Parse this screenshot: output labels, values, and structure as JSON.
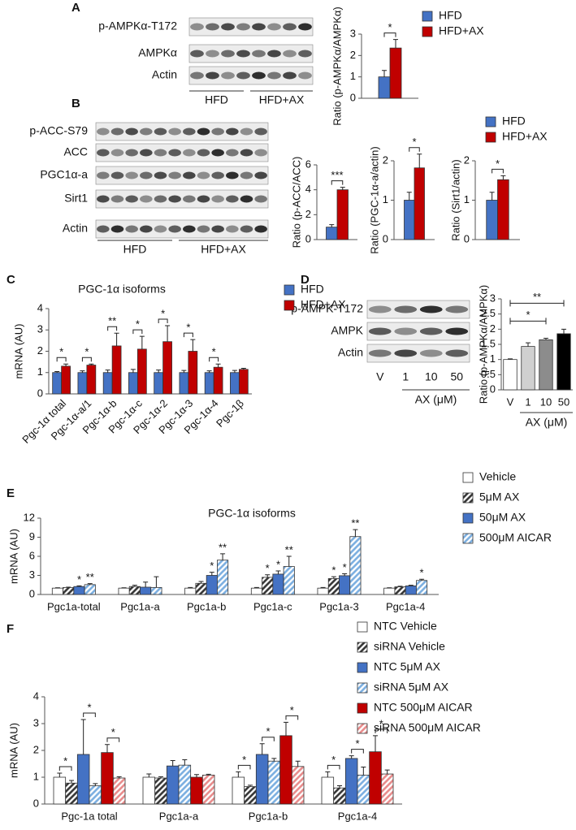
{
  "blots": [
    {
      "panel": "A",
      "rows": [
        "p-AMPKα-T172",
        "AMPKα",
        "Actin"
      ],
      "groups": [
        "HFD",
        "HFD+AX"
      ]
    },
    {
      "panel": "B",
      "rows": [
        "p-ACC-S79",
        "ACC",
        "PGC1α-a",
        "Sirt1",
        "Actin"
      ],
      "groups": [
        "HFD",
        "HFD+AX"
      ]
    },
    {
      "panel": "D",
      "rows": [
        "p-AMPK-T172",
        "AMPK",
        "Actin"
      ],
      "lanes": [
        "V",
        "1",
        "10",
        "50"
      ],
      "group": "AX (μM)"
    }
  ],
  "chart_data": [
    {
      "type": "bar",
      "categories": [
        null
      ],
      "ylabel": "Ratio (p-AMPKα/AMPKα)",
      "ylim": [
        0,
        3
      ],
      "yticks": [
        0,
        1,
        2,
        3
      ],
      "series": [
        {
          "name": "HFD",
          "color": "#4472c4",
          "values": [
            1
          ],
          "errors": [
            0.3
          ]
        },
        {
          "name": "HFD+AX",
          "color": "#c00000",
          "values": [
            2.35
          ],
          "errors": [
            0.4
          ]
        }
      ],
      "brackets": [
        "*"
      ]
    },
    {
      "type": "bar",
      "categories": [
        null
      ],
      "ylabel": "Ratio (p-ACC/ACC)",
      "ylim": [
        0,
        6
      ],
      "yticks": [
        0,
        2,
        4,
        6
      ],
      "series": [
        {
          "color": "#4472c4",
          "values": [
            1
          ],
          "errors": [
            0.2
          ]
        },
        {
          "color": "#c00000",
          "values": [
            4
          ],
          "errors": [
            0.2
          ]
        }
      ],
      "brackets": [
        "***"
      ]
    },
    {
      "type": "bar",
      "categories": [
        null
      ],
      "ylabel": "Ratio (PGC-1α-a/actin)",
      "ylim": [
        0,
        2
      ],
      "yticks": [
        0,
        1,
        2
      ],
      "series": [
        {
          "color": "#4472c4",
          "values": [
            1
          ],
          "errors": [
            0.2
          ]
        },
        {
          "color": "#c00000",
          "values": [
            1.82
          ],
          "errors": [
            0.35
          ]
        }
      ],
      "brackets": [
        "*"
      ]
    },
    {
      "type": "bar",
      "categories": [
        null
      ],
      "ylabel": "Ratio (Sirt1/actin)",
      "ylim": [
        0,
        2
      ],
      "yticks": [
        0,
        1,
        2
      ],
      "series": [
        {
          "name": "HFD",
          "color": "#4472c4",
          "values": [
            1
          ],
          "errors": [
            0.2
          ]
        },
        {
          "name": "HFD+AX",
          "color": "#c00000",
          "values": [
            1.52
          ],
          "errors": [
            0.1
          ]
        }
      ],
      "brackets": [
        "*"
      ]
    },
    {
      "type": "bar",
      "panel": "C",
      "title": "PGC-1α isoforms",
      "ylabel": "mRNA (AU)",
      "ylim": [
        0,
        4
      ],
      "yticks": [
        0,
        1,
        2,
        3,
        4
      ],
      "categories": [
        "Pgc-1α total",
        "Pgc-1α-a/1",
        "Pgc-1α-b",
        "Pgc-1α-c",
        "Pgc-1α-2",
        "Pgc-1α-3",
        "Pgc-1α-4",
        "Pgc-1β"
      ],
      "series": [
        {
          "name": "HFD",
          "color": "#4472c4",
          "values": [
            1,
            1,
            1,
            1,
            1,
            1,
            1,
            1
          ],
          "errors": [
            0.05,
            0.08,
            0.12,
            0.15,
            0.12,
            0.1,
            0.08,
            0.1
          ]
        },
        {
          "name": "HFD+AX",
          "color": "#c00000",
          "values": [
            1.3,
            1.35,
            2.25,
            2.1,
            2.45,
            2,
            1.25,
            1.15
          ],
          "errors": [
            0.1,
            0.05,
            0.6,
            0.6,
            0.75,
            0.55,
            0.15,
            0.05
          ]
        }
      ],
      "brackets": [
        "*",
        "*",
        "**",
        "*",
        "*",
        "*",
        "*",
        null
      ]
    },
    {
      "type": "bar",
      "ylabel": "Ratio (p-AMPKα/AMPKα)",
      "ylim": [
        0,
        3
      ],
      "yticks": [
        0,
        0.5,
        1,
        1.5,
        2,
        2.5,
        3
      ],
      "categories": [
        "V",
        "1",
        "10",
        "50"
      ],
      "xlabel": "AX (μM)",
      "values": [
        1,
        1.43,
        1.65,
        1.85
      ],
      "errors": [
        0.02,
        0.12,
        0.05,
        0.15
      ],
      "colors": [
        "#ffffff",
        "#d0d0d0",
        "#8c8c8c",
        "#000000"
      ],
      "annotations": [
        "*",
        "**"
      ]
    },
    {
      "type": "bar",
      "panel": "E",
      "title": "PGC-1α isoforms",
      "ylabel": "mRNA (AU)",
      "ylim": [
        0,
        12
      ],
      "yticks": [
        0,
        3,
        6,
        9,
        12
      ],
      "categories": [
        "Pgc1a-total",
        "Pgc1a-a",
        "Pgc1a-b",
        "Pgc1a-c",
        "Pgc1a-3",
        "Pgc1a-4"
      ],
      "series": [
        {
          "name": "Vehicle",
          "color": "#ffffff",
          "values": [
            1,
            1,
            1,
            1,
            1,
            1
          ],
          "errors": [
            0.05,
            0.05,
            0.1,
            0.1,
            0.1,
            0.05
          ]
        },
        {
          "name": "5μM AX",
          "color": "#333333",
          "hatch": true,
          "values": [
            1.1,
            1.25,
            1.75,
            2.7,
            2.5,
            1.2
          ],
          "errors": [
            0.05,
            0.2,
            0.3,
            0.4,
            0.3,
            0.1
          ],
          "significance": [
            null,
            null,
            null,
            "*",
            "*",
            null
          ]
        },
        {
          "name": "50μM AX",
          "color": "#4472c4",
          "values": [
            1.25,
            1.15,
            3,
            3.2,
            2.95,
            1.35
          ],
          "errors": [
            0.1,
            0.8,
            0.5,
            0.5,
            0.3,
            0.1
          ],
          "significance": [
            "*",
            null,
            "*",
            "*",
            "*",
            null
          ]
        },
        {
          "name": "500μM AICAR",
          "color": "#7aaee0",
          "hatch": true,
          "values": [
            1.55,
            1.1,
            5.4,
            4.4,
            9.1,
            2.2
          ],
          "errors": [
            0.15,
            1.7,
            1,
            1.6,
            1.1,
            0.2
          ],
          "significance": [
            "**",
            null,
            "**",
            "**",
            "**",
            "*"
          ]
        }
      ]
    },
    {
      "type": "bar",
      "panel": "F",
      "ylabel": "mRNA (AU)",
      "ylim": [
        0,
        4
      ],
      "yticks": [
        0,
        1,
        2,
        3,
        4
      ],
      "categories": [
        "Pgc-1a total",
        "Pgc1a-a",
        "Pgc1a-b",
        "Pgc1a-4"
      ],
      "series": [
        {
          "name": "NTC Vehicle",
          "color": "#ffffff",
          "values": [
            1,
            1,
            1,
            1
          ],
          "errors": [
            0.15,
            0.12,
            0.2,
            0.2
          ]
        },
        {
          "name": "siRNA Vehicle",
          "color": "#333333",
          "hatch": true,
          "values": [
            0.78,
            0.97,
            0.65,
            0.6
          ],
          "errors": [
            0.1,
            0.05,
            0.05,
            0.08
          ]
        },
        {
          "name": "NTC 5μM AX",
          "color": "#4472c4",
          "values": [
            1.85,
            1.42,
            1.85,
            1.7
          ],
          "errors": [
            1.3,
            0.2,
            0.4,
            0.1
          ]
        },
        {
          "name": "siRNA 5μM AX",
          "color": "#7aaee0",
          "hatch": true,
          "values": [
            0.68,
            1.45,
            1.6,
            1.08
          ],
          "errors": [
            0.08,
            0.2,
            0.1,
            0.3
          ]
        },
        {
          "name": "NTC 500μM AICAR",
          "color": "#c00000",
          "values": [
            1.92,
            1,
            2.55,
            1.95
          ],
          "errors": [
            0.3,
            0.1,
            0.5,
            0.6
          ]
        },
        {
          "name": "siRNA 500μM AICAR",
          "color": "#e88a8a",
          "hatch": true,
          "values": [
            0.97,
            1.08,
            1.4,
            1.12
          ],
          "errors": [
            0.05,
            0.03,
            0.2,
            0.15
          ]
        }
      ],
      "pair_brackets": [
        [
          "*",
          "*",
          "*"
        ],
        [
          null,
          null,
          null
        ],
        [
          "*",
          "*",
          "*"
        ],
        [
          "*",
          "*",
          "*"
        ]
      ]
    }
  ]
}
